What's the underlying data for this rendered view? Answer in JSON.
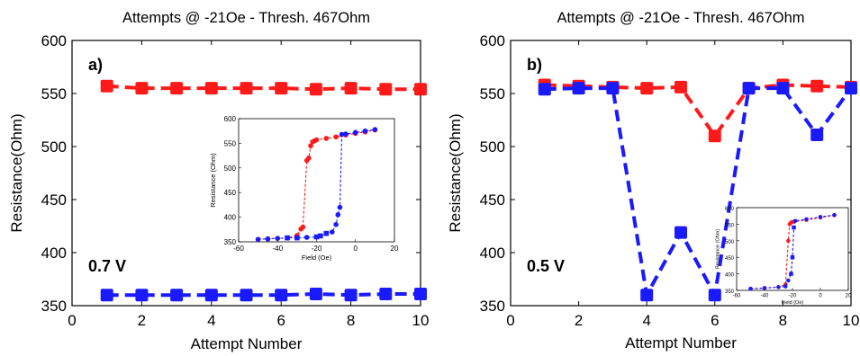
{
  "chart_data": [
    {
      "type": "line",
      "panel_label": "a)",
      "title": "Attempts @ -21Oe - Thresh. 467Ohm",
      "xlabel": "Attempt Number",
      "ylabel": "Resistance(Ohm)",
      "xlim": [
        0,
        10
      ],
      "ylim": [
        350,
        600
      ],
      "xticks": [
        0,
        2,
        4,
        6,
        8,
        10
      ],
      "yticks": [
        350,
        400,
        450,
        500,
        550,
        600
      ],
      "annotation": "0.7 V",
      "x": [
        1,
        2,
        3,
        4,
        5,
        6,
        7,
        8,
        9,
        10
      ],
      "series": [
        {
          "color": "#ff1a1a",
          "values": [
            557,
            555,
            555,
            555,
            555,
            555,
            554,
            555,
            554,
            554
          ]
        },
        {
          "color": "#1a1aff",
          "values": [
            360,
            360,
            360,
            360,
            360,
            360,
            361,
            360,
            361,
            361
          ]
        }
      ],
      "inset": {
        "type": "line",
        "xlabel": "Field (Oe)",
        "ylabel": "Resistance (Ohm)",
        "xlim": [
          -60,
          20
        ],
        "ylim": [
          350,
          600
        ],
        "xticks": [
          -60,
          -40,
          -20,
          0,
          20
        ],
        "yticks": [
          350,
          400,
          450,
          500,
          550,
          600
        ],
        "series": [
          {
            "color": "#ff1a1a",
            "x": [
              -50,
              -45,
              -40,
              -35,
              -30,
              -28,
              -27,
              -25,
              -24,
              -23,
              -22,
              -21,
              -20,
              -15,
              -10,
              -5,
              0,
              5,
              10
            ],
            "values": [
              355,
              356,
              357,
              358,
              363,
              376,
              380,
              515,
              520,
              545,
              553,
              555,
              557,
              560,
              563,
              567,
              570,
              573,
              577
            ]
          },
          {
            "color": "#1a1aff",
            "x": [
              -50,
              -45,
              -40,
              -35,
              -30,
              -25,
              -20,
              -18,
              -15,
              -12,
              -10,
              -9,
              -8,
              -7,
              -5,
              0,
              5,
              10
            ],
            "values": [
              355,
              356,
              357,
              358,
              358,
              359,
              360,
              362,
              367,
              370,
              385,
              405,
              420,
              568,
              569,
              572,
              575,
              578
            ]
          }
        ]
      }
    },
    {
      "type": "line",
      "panel_label": "b)",
      "title": "Attempts @ -21Oe - Thresh. 467Ohm",
      "xlabel": "Attempt Number",
      "ylabel": "Resistance(Ohm)",
      "xlim": [
        0,
        10
      ],
      "ylim": [
        350,
        600
      ],
      "xticks": [
        0,
        2,
        4,
        6,
        8,
        10
      ],
      "yticks": [
        350,
        400,
        450,
        500,
        550,
        600
      ],
      "annotation": "0.5 V",
      "x": [
        1,
        2,
        3,
        4,
        5,
        6,
        7,
        8,
        9,
        10
      ],
      "series": [
        {
          "color": "#ff1a1a",
          "values": [
            558,
            557,
            556,
            555,
            556,
            510,
            555,
            558,
            557,
            556
          ]
        },
        {
          "color": "#1a1aff",
          "values": [
            554,
            555,
            555,
            360,
            419,
            360,
            555,
            555,
            511,
            555
          ]
        }
      ],
      "inset": {
        "type": "line",
        "xlabel": "Field (Oe)",
        "ylabel": "Resistance (Ohm)",
        "xlim": [
          -60,
          20
        ],
        "ylim": [
          350,
          600
        ],
        "xticks": [
          -60,
          -40,
          -20,
          0,
          20
        ],
        "yticks": [
          350,
          400,
          450,
          500,
          550,
          600
        ],
        "series": [
          {
            "color": "#ff1a1a",
            "x": [
              -50,
              -40,
              -30,
              -25,
              -23,
              -22,
              -21,
              -20,
              -10,
              0,
              10
            ],
            "values": [
              355,
              357,
              360,
              368,
              500,
              550,
              555,
              557,
              563,
              570,
              577
            ]
          },
          {
            "color": "#1a1aff",
            "x": [
              -50,
              -40,
              -30,
              -25,
              -23,
              -21,
              -20,
              -19,
              -18,
              -10,
              0,
              10
            ],
            "values": [
              355,
              357,
              360,
              362,
              380,
              400,
              450,
              540,
              560,
              565,
              572,
              578
            ]
          }
        ]
      }
    }
  ]
}
